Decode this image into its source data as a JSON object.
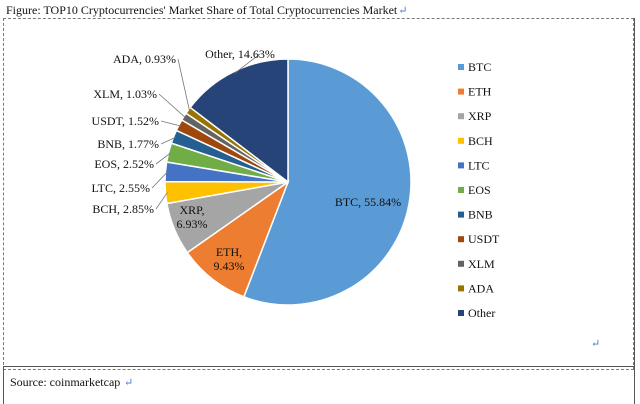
{
  "figure_title": "Figure: TOP10 Cryptocurrencies' Market Share of Total Cryptocurrencies Market",
  "source": "Source: coinmarketcap",
  "chart_data": {
    "type": "pie",
    "title": "",
    "unit": "%",
    "legend_position": "right",
    "slices": [
      {
        "name": "BTC",
        "value": 55.84,
        "label": "BTC, 55.84%",
        "color": "#5b9bd5"
      },
      {
        "name": "ETH",
        "value": 9.43,
        "label": "ETH, 9.43%",
        "color": "#ed7d31"
      },
      {
        "name": "XRP",
        "value": 6.93,
        "label": "XRP, 6.93%",
        "color": "#a5a5a5"
      },
      {
        "name": "BCH",
        "value": 2.85,
        "label": "BCH, 2.85%",
        "color": "#ffc000"
      },
      {
        "name": "LTC",
        "value": 2.55,
        "label": "LTC, 2.55%",
        "color": "#4472c4"
      },
      {
        "name": "EOS",
        "value": 2.52,
        "label": "EOS, 2.52%",
        "color": "#70ad47"
      },
      {
        "name": "BNB",
        "value": 1.77,
        "label": "BNB, 1.77%",
        "color": "#255e91"
      },
      {
        "name": "USDT",
        "value": 1.52,
        "label": "USDT, 1.52%",
        "color": "#9e480e"
      },
      {
        "name": "XLM",
        "value": 1.03,
        "label": "XLM, 1.03%",
        "color": "#636363"
      },
      {
        "name": "ADA",
        "value": 0.93,
        "label": "ADA, 0.93%",
        "color": "#997300"
      },
      {
        "name": "Other",
        "value": 14.63,
        "label": "Other, 14.63%",
        "color": "#264478"
      }
    ]
  }
}
